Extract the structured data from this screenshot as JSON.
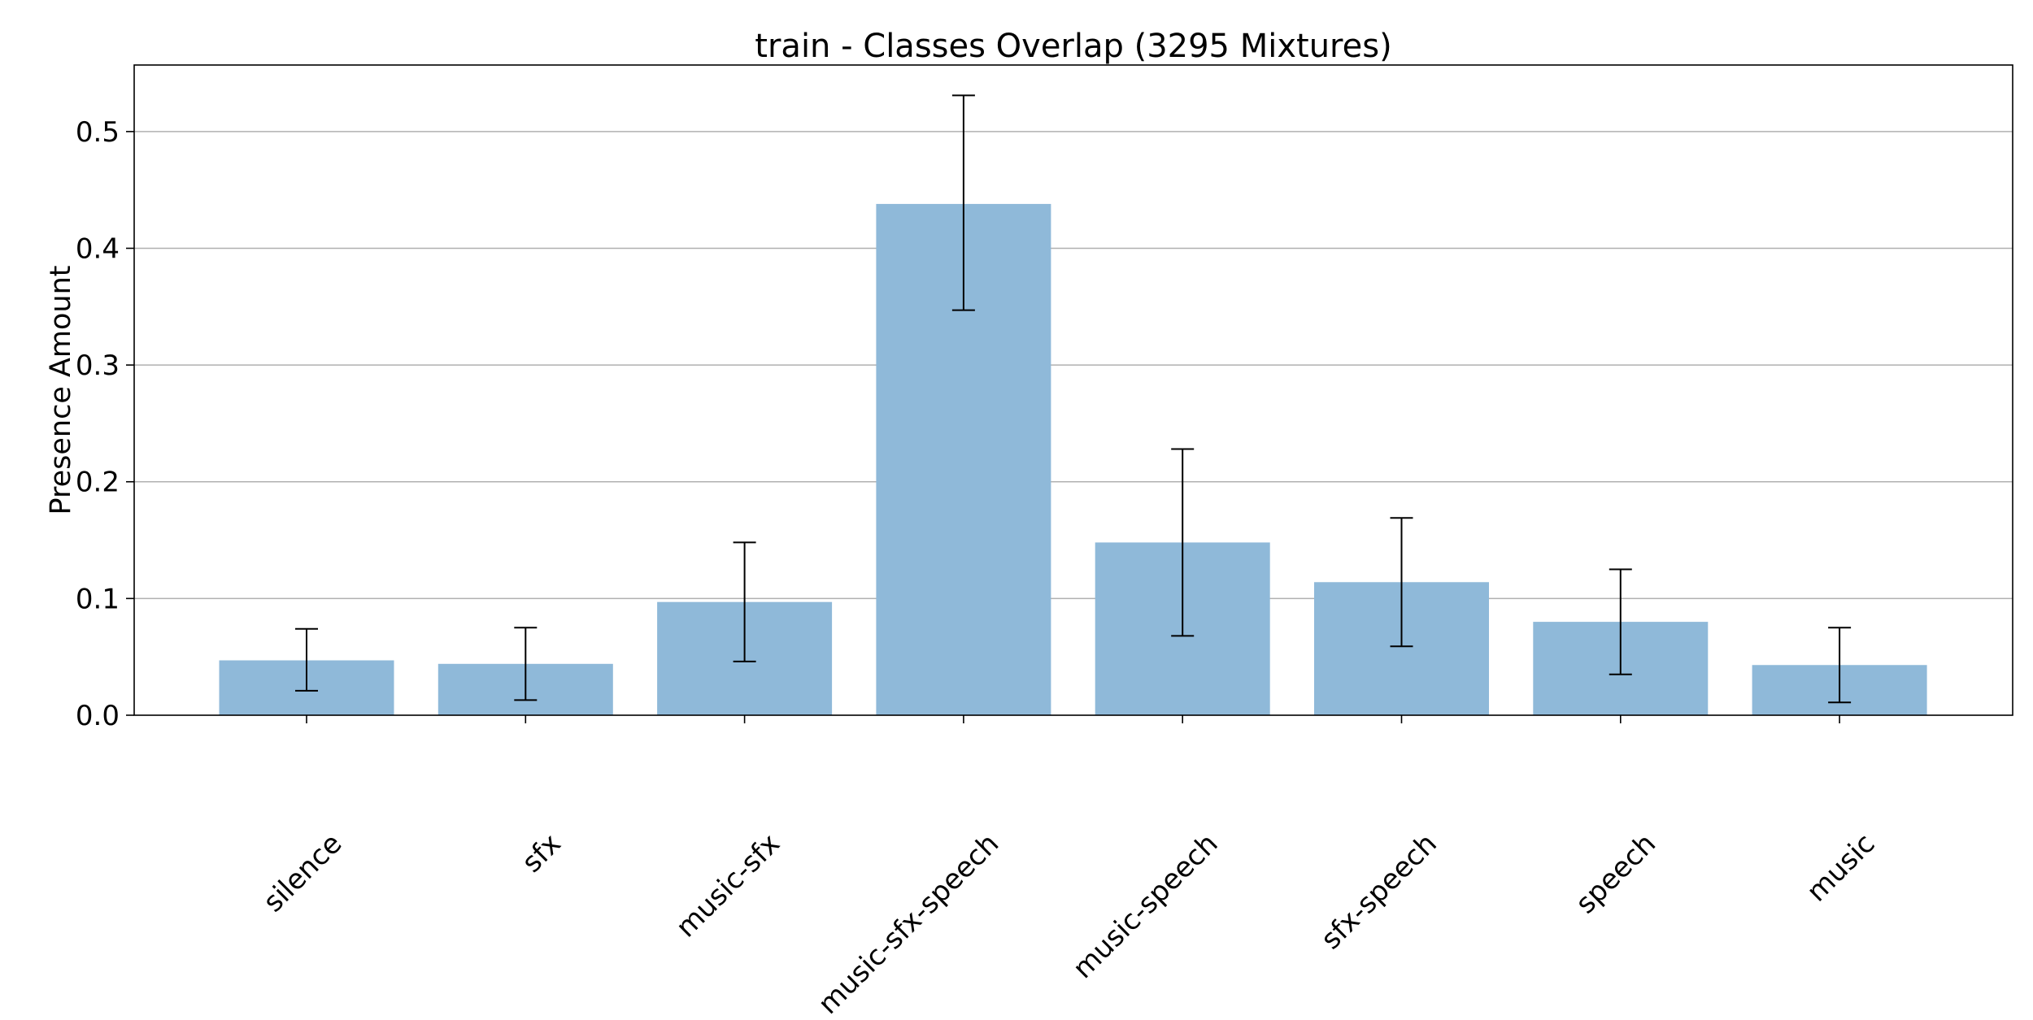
{
  "chart_data": {
    "type": "bar",
    "title": "train - Classes Overlap (3295 Mixtures)",
    "xlabel": "",
    "ylabel": "Presence Amount",
    "categories": [
      "silence",
      "sfx",
      "music-sfx",
      "music-sfx-speech",
      "music-speech",
      "sfx-speech",
      "speech",
      "music"
    ],
    "values": [
      0.047,
      0.044,
      0.097,
      0.438,
      0.148,
      0.114,
      0.08,
      0.043
    ],
    "error_low": [
      0.021,
      0.013,
      0.046,
      0.347,
      0.068,
      0.059,
      0.035,
      0.011
    ],
    "error_high": [
      0.074,
      0.075,
      0.148,
      0.531,
      0.228,
      0.169,
      0.125,
      0.075
    ],
    "yticks": [
      0.0,
      0.1,
      0.2,
      0.3,
      0.4,
      0.5
    ],
    "ytick_labels": [
      "0.0",
      "0.1",
      "0.2",
      "0.3",
      "0.4",
      "0.5"
    ],
    "ylim": [
      0,
      0.557
    ],
    "grid": "y-axis",
    "bar_color": "#8fb9d9",
    "xtick_rotation": 45
  }
}
